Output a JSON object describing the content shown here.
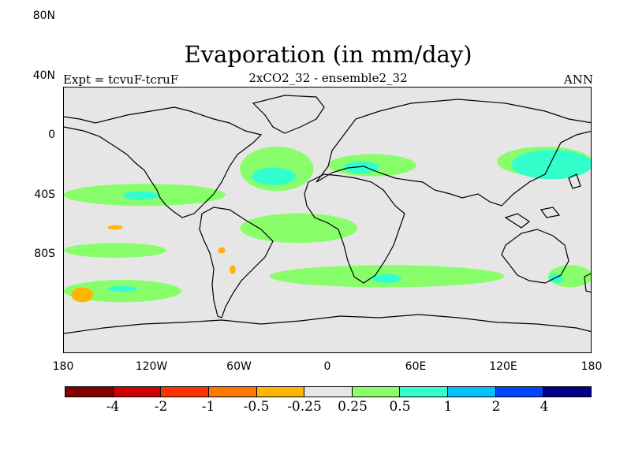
{
  "title": "Evaporation (in mm/day)",
  "subtitle": "2xCO2_32 - ensemble2_32",
  "left_label": "Expt = tcvuF-tcruF",
  "right_label": "ANN",
  "lat_labels": [
    "80N",
    "40N",
    "0",
    "40S",
    "80S"
  ],
  "lon_labels": [
    "180",
    "120W",
    "60W",
    "0",
    "60E",
    "120E",
    "180"
  ],
  "colors": {
    "background": "#e6e6e6",
    "land_outline": "#000000",
    "scale": [
      "#800000",
      "#cc0000",
      "#ff3300",
      "#ff7700",
      "#ffb400",
      "#e6e6e6",
      "#88ff6a",
      "#33ffcc",
      "#00c0ff",
      "#0044ff",
      "#000088"
    ]
  },
  "legend_labels": [
    "-4",
    "-2",
    "-1",
    "-0.5",
    "-0.25",
    "0.25",
    "0.5",
    "1",
    "2",
    "4"
  ],
  "chart_data": {
    "type": "heatmap",
    "title": "Evaporation (in mm/day)",
    "subtitle": "2xCO2_32 - ensemble2_32",
    "experiment": "Expt = tcvuF-tcruF",
    "season": "ANN",
    "xlim": [
      -180,
      180
    ],
    "ylim": [
      -90,
      90
    ],
    "levels": [
      -4,
      -2,
      -1,
      -0.5,
      -0.25,
      0.25,
      0.5,
      1,
      2,
      4
    ],
    "regions": [
      {
        "level_index": 6,
        "value": 0.5,
        "lon": [
          -180,
          -70
        ],
        "lat": [
          10,
          25
        ]
      },
      {
        "level_index": 7,
        "value": 1,
        "lon": [
          -140,
          -115
        ],
        "lat": [
          14,
          20
        ]
      },
      {
        "level_index": 6,
        "value": 0.5,
        "lon": [
          -60,
          -10
        ],
        "lat": [
          20,
          50
        ]
      },
      {
        "level_index": 7,
        "value": 1,
        "lon": [
          -52,
          -22
        ],
        "lat": [
          24,
          36
        ]
      },
      {
        "level_index": 6,
        "value": 0.5,
        "lon": [
          0,
          60
        ],
        "lat": [
          30,
          45
        ]
      },
      {
        "level_index": 7,
        "value": 1,
        "lon": [
          10,
          35
        ],
        "lat": [
          32,
          40
        ]
      },
      {
        "level_index": 6,
        "value": 0.5,
        "lon": [
          115,
          180
        ],
        "lat": [
          30,
          50
        ]
      },
      {
        "level_index": 8,
        "value": 2,
        "lon": [
          150,
          165
        ],
        "lat": [
          35,
          45
        ]
      },
      {
        "level_index": 7,
        "value": 1,
        "lon": [
          125,
          180
        ],
        "lat": [
          28,
          48
        ]
      },
      {
        "level_index": 6,
        "value": 0.5,
        "lon": [
          -180,
          -110
        ],
        "lat": [
          -25,
          -15
        ]
      },
      {
        "level_index": 4,
        "value": -0.25,
        "lon": [
          -150,
          -140
        ],
        "lat": [
          -6,
          -3
        ]
      },
      {
        "level_index": 4,
        "value": -0.25,
        "lon": [
          -75,
          -70
        ],
        "lat": [
          -22,
          -18
        ]
      },
      {
        "level_index": 4,
        "value": -0.25,
        "lon": [
          -67,
          -63
        ],
        "lat": [
          -36,
          -30
        ]
      },
      {
        "level_index": 6,
        "value": 0.5,
        "lon": [
          -60,
          20
        ],
        "lat": [
          -15,
          5
        ]
      },
      {
        "level_index": 6,
        "value": 0.5,
        "lon": [
          -40,
          120
        ],
        "lat": [
          -45,
          -30
        ]
      },
      {
        "level_index": 7,
        "value": 1,
        "lon": [
          30,
          50
        ],
        "lat": [
          -42,
          -36
        ]
      },
      {
        "level_index": 6,
        "value": 0.5,
        "lon": [
          -180,
          -100
        ],
        "lat": [
          -55,
          -40
        ]
      },
      {
        "level_index": 7,
        "value": 1,
        "lon": [
          -150,
          -130
        ],
        "lat": [
          -48,
          -44
        ]
      },
      {
        "level_index": 4,
        "value": -0.25,
        "lon": [
          -175,
          -160
        ],
        "lat": [
          -55,
          -45
        ]
      },
      {
        "level_index": 6,
        "value": 0.5,
        "lon": [
          150,
          180
        ],
        "lat": [
          -45,
          -30
        ]
      },
      {
        "level_index": 7,
        "value": 1,
        "lon": [
          150,
          160
        ],
        "lat": [
          -42,
          -36
        ]
      }
    ]
  }
}
